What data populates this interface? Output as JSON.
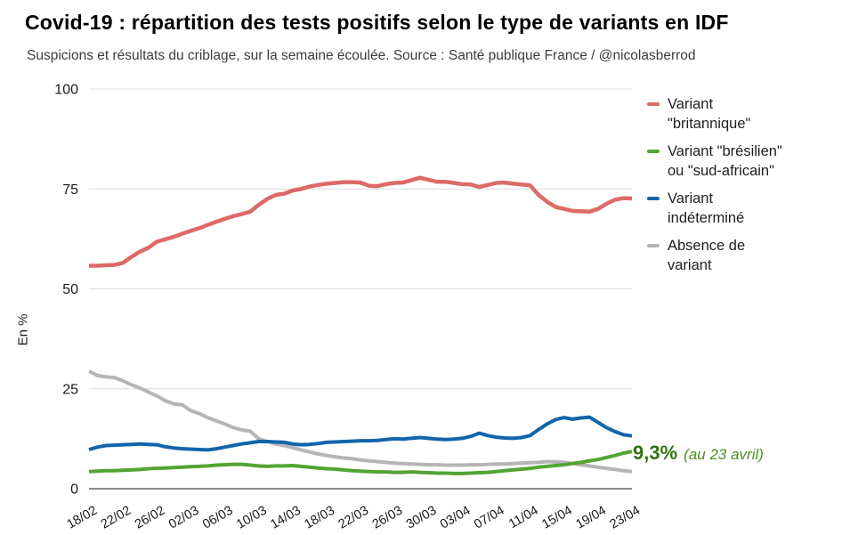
{
  "header": {
    "title": "Covid-19 : répartition des tests positifs selon le type de variants en IDF",
    "subtitle": "Suspicions et résultats du criblage, sur la semaine écoulée. Source : Santé publique France / @nicolasberrod"
  },
  "annotation": {
    "value": "9,3%",
    "note": "(au 23 avril)"
  },
  "colors": {
    "red": "#dd6a66",
    "green": "#54a431",
    "blue": "#1265ab",
    "gray": "#b5b5b5",
    "grid": "#dcdcdc",
    "axis_line": "#8a8a8a",
    "tick_text": "#1a1a1a",
    "annotation_value": "#2f7512",
    "annotation_note": "#4a9021"
  },
  "legend": {
    "items": [
      {
        "lines": [
          "Variant",
          "\"britannique\""
        ],
        "color": "#dd6a66"
      },
      {
        "lines": [
          "Variant \"brésilien\"",
          "ou \"sud-africain\""
        ],
        "color": "#54a431"
      },
      {
        "lines": [
          "Variant",
          "indéterminé"
        ],
        "color": "#1265ab"
      },
      {
        "lines": [
          "Absence de",
          "variant"
        ],
        "color": "#b5b5b5"
      }
    ]
  },
  "chart_data": {
    "type": "line",
    "title": "Covid-19 : répartition des tests positifs selon le type de variants en IDF",
    "subtitle": "Suspicions et résultats du criblage, sur la semaine écoulée. Source : Santé publique France / @nicolasberrod",
    "xlabel": "",
    "ylabel": "En %",
    "ylim": [
      0,
      100
    ],
    "yticks": [
      0,
      25,
      50,
      75,
      100
    ],
    "grid": true,
    "legend_position": "right",
    "x": [
      "18/02",
      "19/02",
      "20/02",
      "21/02",
      "22/02",
      "23/02",
      "24/02",
      "25/02",
      "26/02",
      "27/02",
      "28/02",
      "01/03",
      "02/03",
      "03/03",
      "04/03",
      "05/03",
      "06/03",
      "07/03",
      "08/03",
      "09/03",
      "10/03",
      "11/03",
      "12/03",
      "13/03",
      "14/03",
      "15/03",
      "16/03",
      "17/03",
      "18/03",
      "19/03",
      "20/03",
      "21/03",
      "22/03",
      "23/03",
      "24/03",
      "25/03",
      "26/03",
      "27/03",
      "28/03",
      "29/03",
      "30/03",
      "31/03",
      "01/04",
      "02/04",
      "03/04",
      "04/04",
      "05/04",
      "06/04",
      "07/04",
      "08/04",
      "09/04",
      "10/04",
      "11/04",
      "12/04",
      "13/04",
      "14/04",
      "15/04",
      "16/04",
      "17/04",
      "18/04",
      "19/04",
      "20/04",
      "21/04",
      "22/04",
      "23/04"
    ],
    "xtick_labels": [
      "18/02",
      "22/02",
      "26/02",
      "02/03",
      "06/03",
      "10/03",
      "14/03",
      "18/03",
      "22/03",
      "26/03",
      "30/03",
      "03/04",
      "07/04",
      "11/04",
      "15/04",
      "19/04",
      "23/04"
    ],
    "series": [
      {
        "name": "Variant \"britannique\"",
        "slug": "variant-britannique",
        "color": "#dd6a66",
        "width": 4.5,
        "values": [
          55.8,
          55.8,
          55.9,
          56.0,
          56.5,
          58.0,
          59.3,
          60.3,
          61.8,
          62.4,
          63.0,
          63.8,
          64.5,
          65.2,
          66.0,
          66.8,
          67.5,
          68.2,
          68.7,
          69.3,
          71.0,
          72.5,
          73.5,
          73.8,
          74.6,
          75.0,
          75.6,
          76.0,
          76.3,
          76.5,
          76.7,
          76.7,
          76.6,
          75.8,
          75.7,
          76.2,
          76.5,
          76.6,
          77.2,
          77.8,
          77.3,
          76.8,
          76.8,
          76.5,
          76.2,
          76.1,
          75.5,
          76.0,
          76.5,
          76.6,
          76.3,
          76.1,
          75.9,
          73.5,
          71.8,
          70.5,
          70.0,
          69.5,
          69.4,
          69.3,
          70.0,
          71.3,
          72.3,
          72.7,
          72.6
        ]
      },
      {
        "name": "Variant \"brésilien\" ou \"sud-africain\"",
        "slug": "variant-bresilien-sudafricain",
        "color": "#54a431",
        "width": 4,
        "values": [
          4.3,
          4.4,
          4.5,
          4.5,
          4.6,
          4.7,
          4.8,
          5.0,
          5.1,
          5.2,
          5.3,
          5.4,
          5.5,
          5.6,
          5.7,
          5.9,
          6.0,
          6.1,
          6.1,
          5.9,
          5.7,
          5.6,
          5.7,
          5.7,
          5.8,
          5.6,
          5.4,
          5.2,
          5.0,
          4.9,
          4.7,
          4.5,
          4.4,
          4.3,
          4.2,
          4.2,
          4.1,
          4.1,
          4.2,
          4.1,
          4.0,
          3.9,
          3.9,
          3.8,
          3.8,
          3.9,
          4.0,
          4.1,
          4.3,
          4.5,
          4.7,
          4.9,
          5.1,
          5.4,
          5.6,
          5.8,
          6.0,
          6.3,
          6.6,
          7.0,
          7.3,
          7.8,
          8.3,
          8.9,
          9.3
        ]
      },
      {
        "name": "Variant indéterminé",
        "slug": "variant-indetermine",
        "color": "#1265ab",
        "width": 4,
        "values": [
          9.8,
          10.4,
          10.8,
          10.9,
          11.0,
          11.1,
          11.2,
          11.1,
          11.0,
          10.5,
          10.2,
          10.0,
          9.9,
          9.8,
          9.7,
          10.0,
          10.4,
          10.8,
          11.2,
          11.5,
          11.8,
          11.8,
          11.7,
          11.6,
          11.2,
          11.0,
          11.1,
          11.3,
          11.6,
          11.7,
          11.8,
          11.9,
          12.0,
          12.0,
          12.1,
          12.3,
          12.5,
          12.4,
          12.6,
          12.8,
          12.6,
          12.4,
          12.3,
          12.4,
          12.6,
          13.1,
          13.9,
          13.3,
          12.9,
          12.7,
          12.6,
          12.8,
          13.3,
          14.8,
          16.2,
          17.3,
          17.8,
          17.4,
          17.7,
          17.9,
          16.6,
          15.3,
          14.3,
          13.5,
          13.2
        ]
      },
      {
        "name": "Absence de variant",
        "slug": "absence-de-variant",
        "color": "#b5b5b5",
        "width": 4,
        "values": [
          29.4,
          28.3,
          28.0,
          27.8,
          27.0,
          26.0,
          25.2,
          24.2,
          23.2,
          22.0,
          21.2,
          21.0,
          19.5,
          18.8,
          17.8,
          17.0,
          16.2,
          15.3,
          14.7,
          14.4,
          12.5,
          11.8,
          11.2,
          10.8,
          10.3,
          9.7,
          9.2,
          8.7,
          8.3,
          8.0,
          7.7,
          7.5,
          7.2,
          7.0,
          6.8,
          6.6,
          6.4,
          6.3,
          6.2,
          6.1,
          6.0,
          6.0,
          5.9,
          5.9,
          5.9,
          6.0,
          6.0,
          6.1,
          6.2,
          6.2,
          6.3,
          6.4,
          6.5,
          6.6,
          6.8,
          6.7,
          6.6,
          6.3,
          6.0,
          5.7,
          5.4,
          5.1,
          4.8,
          4.5,
          4.3
        ]
      }
    ]
  }
}
